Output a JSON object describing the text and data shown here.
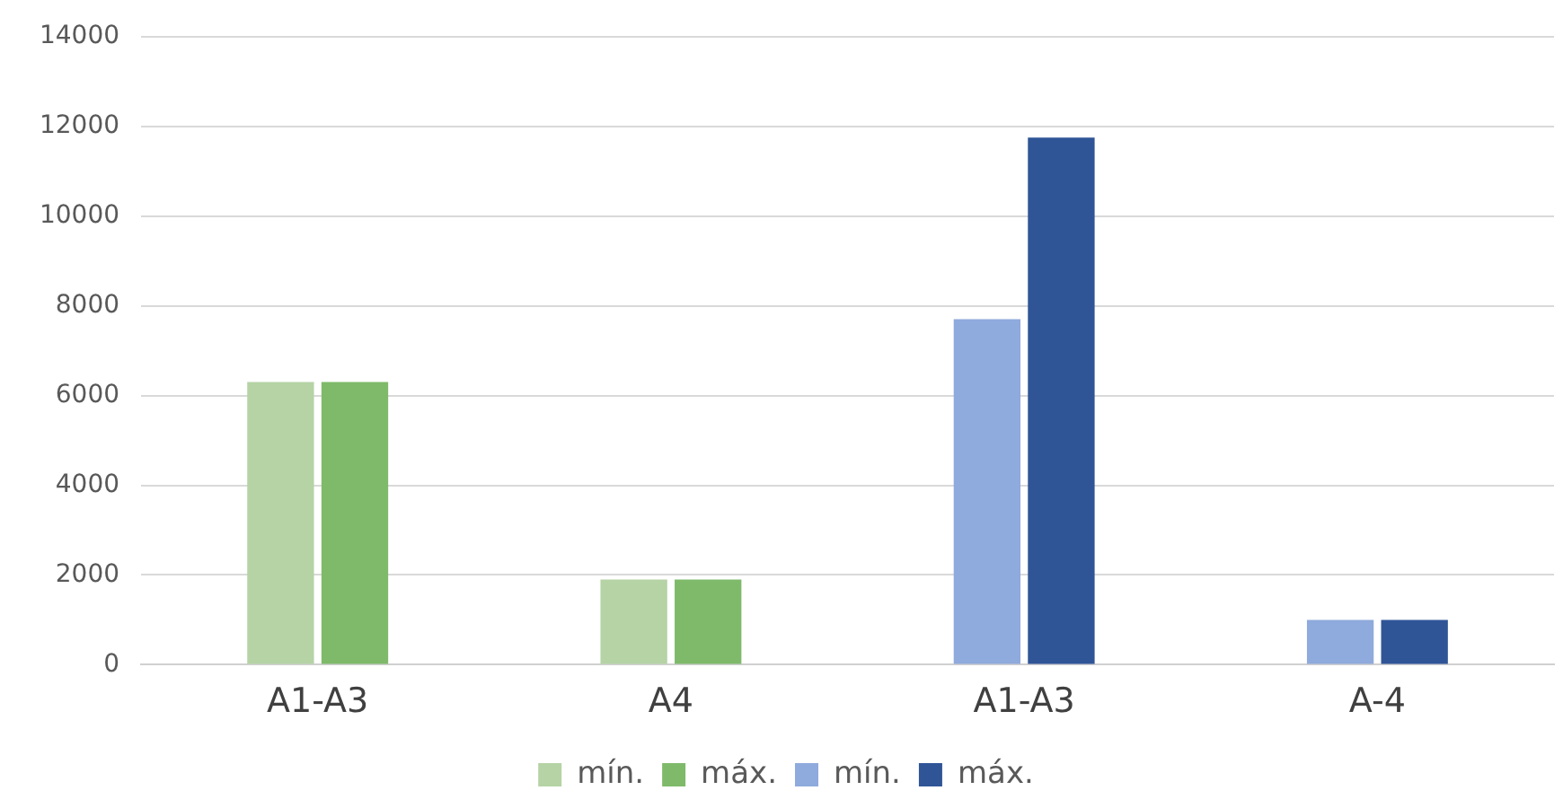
{
  "chart_data": {
    "type": "bar",
    "categories": [
      "A1-A3",
      "A4",
      "A1-A3",
      "A-4"
    ],
    "series": [
      {
        "name": "mín.",
        "color": "#b5d3a5",
        "values": [
          6300,
          1900,
          null,
          null
        ]
      },
      {
        "name": "máx.",
        "color": "#7fba6a",
        "values": [
          6300,
          1900,
          null,
          null
        ]
      },
      {
        "name": "mín.",
        "color": "#8faadc",
        "values": [
          null,
          null,
          7700,
          1000
        ]
      },
      {
        "name": "máx.",
        "color": "#2f5597",
        "values": [
          null,
          null,
          11750,
          1000
        ]
      }
    ],
    "ylim": [
      0,
      14000
    ],
    "yticks": [
      0,
      2000,
      4000,
      6000,
      8000,
      10000,
      12000,
      14000
    ],
    "grid": "y",
    "legend": "bottom"
  }
}
